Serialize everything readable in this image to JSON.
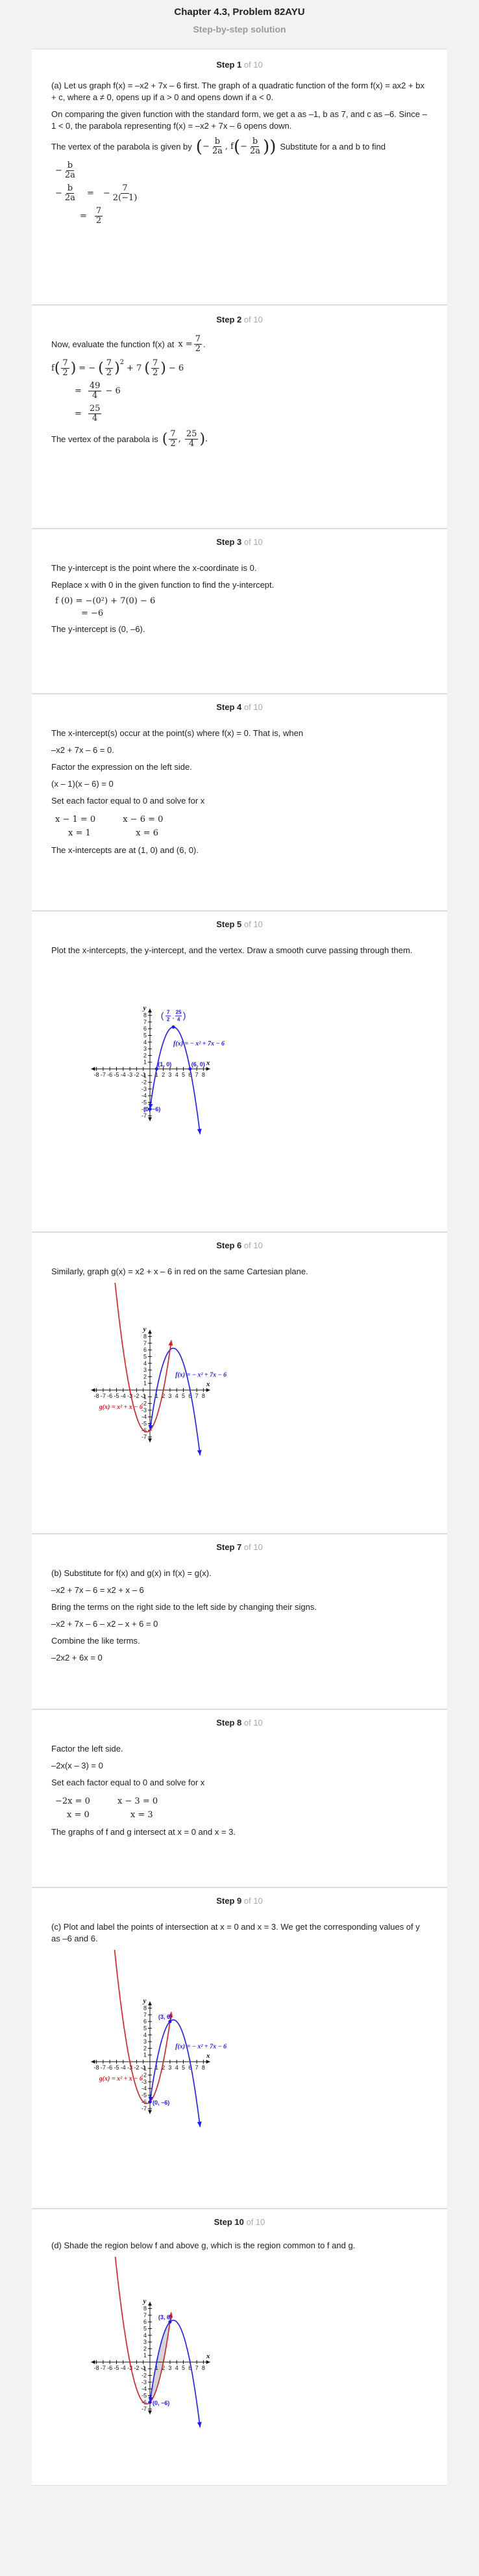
{
  "header": {
    "title": "Chapter 4.3, Problem 82AYU",
    "subtitle": "Step-by-step solution"
  },
  "steps": {
    "s1": {
      "label": "Step 1",
      "of": "of 10",
      "p1": "(a) Let us graph f(x) = –x2 + 7x – 6 first. The graph of a quadratic function of the form f(x) = ax2 + bx + c, where a ≠ 0, opens up if a > 0 and opens down if a < 0.",
      "p2": "On comparing the given function with the standard form, we get a as –1, b as 7, and c as –6. Since –1 < 0, the parabola representing f(x) = –x2 + 7x – 6 opens down.",
      "p3a": "The vertex of the parabola is given by",
      "p3b": "Substitute for a and b to find",
      "eq_lhs": "−",
      "eq_b": "b",
      "eq_2a": "2a",
      "eq_eq": "=",
      "eq_7": "7",
      "eq_den": "2(−1)",
      "eq_ans_n": "7",
      "eq_ans_d": "2"
    },
    "s2": {
      "label": "Step 2",
      "of": "of 10",
      "p1": "Now, evaluate the function f(x) at",
      "line1_lhs": "f",
      "line1_rhs_a": "= −",
      "line1_rhs_b": "+ 7",
      "line1_rhs_c": "− 6",
      "n7": "7",
      "d2": "2",
      "sq": "2",
      "line2_n": "49",
      "line2_d": "4",
      "line2_tail": "− 6",
      "line3_n": "25",
      "line3_d": "4",
      "p2": "The vertex of the parabola is"
    },
    "s3": {
      "label": "Step 3",
      "of": "of 10",
      "p1": "The y-intercept is the point where the x-coordinate is 0.",
      "p2": "Replace x with 0 in the given function to find the y-intercept.",
      "eq1": "f (0) = −(0²) + 7(0) − 6",
      "eq2": "= −6",
      "p3": "The y-intercept is (0, –6)."
    },
    "s4": {
      "label": "Step 4",
      "of": "of 10",
      "p1": "The x-intercept(s) occur at the point(s) where f(x) = 0. That is, when",
      "p2": "–x2 + 7x – 6 = 0.",
      "p3": "Factor the expression on the left side.",
      "p4": "(x – 1)(x – 6) = 0",
      "p5": "Set each factor equal to 0 and solve for x",
      "t1": "x − 1 = 0",
      "t2": "x − 6 = 0",
      "t3": "x = 1",
      "t4": "x = 6",
      "p6": "The x-intercepts are at (1, 0) and (6, 0)."
    },
    "s5": {
      "label": "Step 5",
      "of": "of 10",
      "p1": "Plot the x-intercepts, the y-intercept, and the vertex. Draw a smooth curve passing through them."
    },
    "s6": {
      "label": "Step 6",
      "of": "of 10",
      "p1": "Similarly, graph g(x) = x2 + x – 6 in red on the same Cartesian plane."
    },
    "s7": {
      "label": "Step 7",
      "of": "of 10",
      "p1": "(b) Substitute for f(x) and g(x) in f(x) = g(x).",
      "p2": "–x2 + 7x – 6 = x2 + x – 6",
      "p3": "Bring the terms on the right side to the left side by changing their signs.",
      "p4": "–x2 + 7x – 6 – x2 – x + 6 = 0",
      "p5": "Combine the like terms.",
      "p6": "–2x2 + 6x = 0"
    },
    "s8": {
      "label": "Step 8",
      "of": "of 10",
      "p1": "Factor the left side.",
      "p2": "–2x(x – 3) = 0",
      "p3": "Set each factor equal to 0 and solve for x",
      "t1": "−2x = 0",
      "t2": "x − 3 = 0",
      "t3": "x = 0",
      "t4": "x = 3",
      "p4": "The graphs of f and g intersect at x = 0 and x = 3."
    },
    "s9": {
      "label": "Step 9",
      "of": "of 10",
      "p1": "(c) Plot and label the points of intersection at x = 0 and x = 3. We get the corresponding values of y as –6 and 6."
    },
    "s10": {
      "label": "Step 10",
      "of": "of 10",
      "p1": "(d) Shade the region below f and above g, which is the region common to f and g."
    }
  },
  "graph": {
    "f_label": "f(x) = − x² + 7x − 6",
    "g_label": "g(x) = x² + x − 6",
    "x_axis": "x",
    "y_axis": "y",
    "pt_vertex_n1": "7",
    "pt_vertex_d1": "2",
    "pt_vertex_n2": "25",
    "pt_vertex_d2": "4",
    "pt_10": "(1, 0)",
    "pt_60": "(6, 0)",
    "pt_0m6": "(0, −6)",
    "pt_36": "(3, 6)",
    "x_ticks": [
      "-8",
      "-7",
      "-6",
      "-5",
      "-4",
      "-3",
      "-2",
      "-1",
      "1",
      "2",
      "3",
      "4",
      "5",
      "6",
      "7",
      "8"
    ],
    "y_ticks": [
      "8",
      "7",
      "6",
      "5",
      "4",
      "3",
      "2",
      "1",
      "-1",
      "-2",
      "-3",
      "-4",
      "-5",
      "-6",
      "-7"
    ],
    "colors": {
      "f": "#1a1aff",
      "g": "#e01b1b",
      "shade": "#c9c9c9"
    }
  }
}
